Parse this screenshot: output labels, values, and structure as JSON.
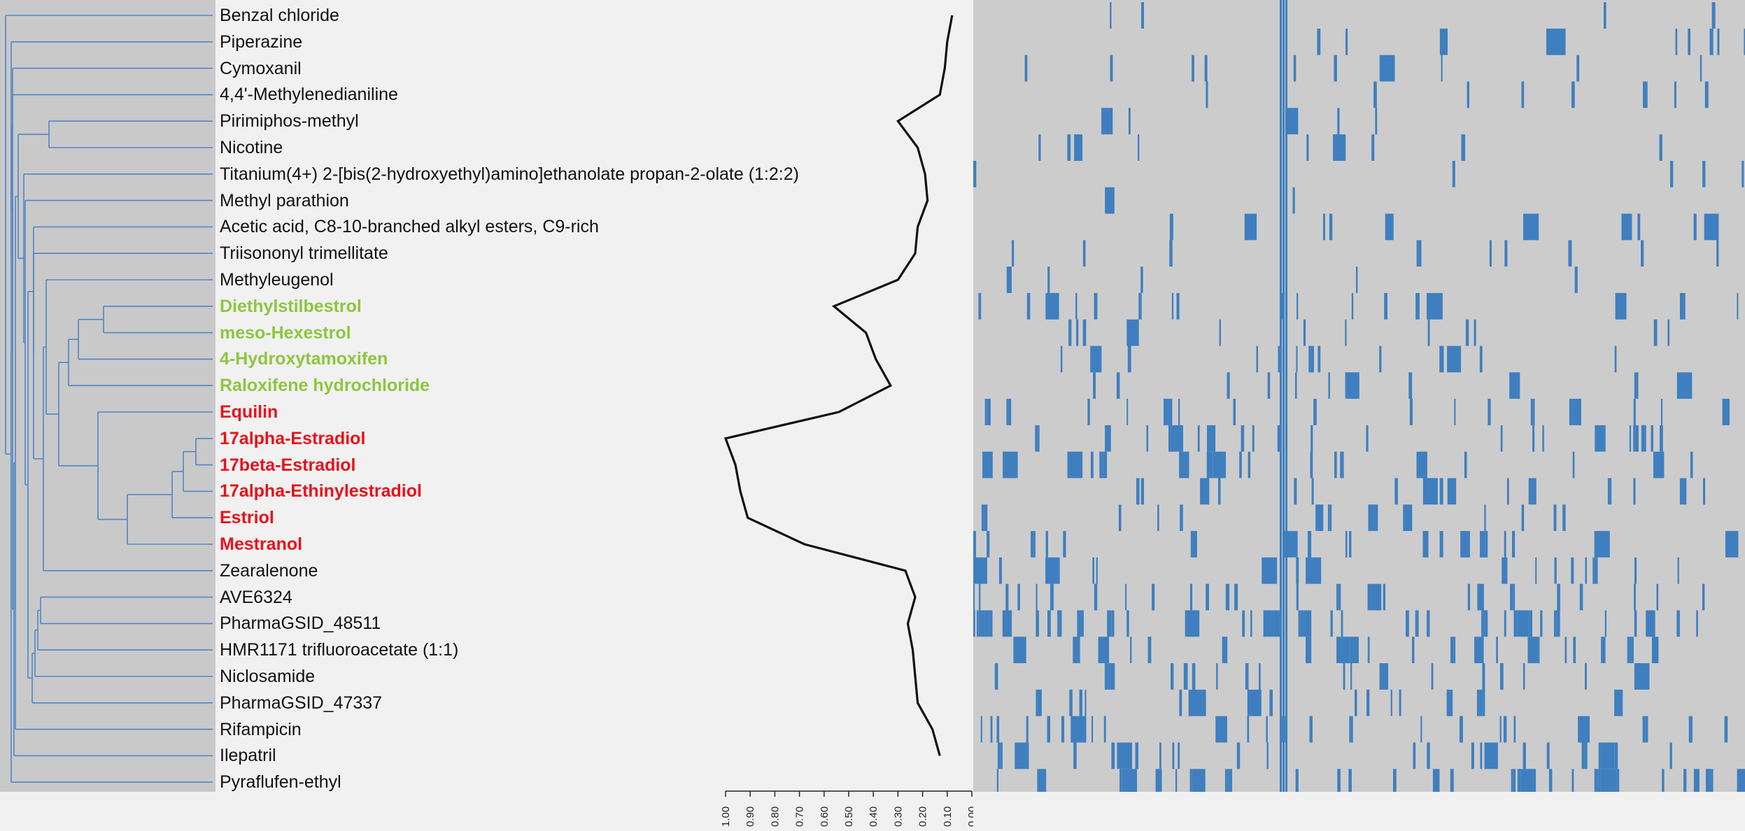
{
  "chart_data": {
    "type": "heatmap",
    "title": "",
    "compounds": [
      {
        "name": "Benzal chloride",
        "group": "none",
        "score": 0.08
      },
      {
        "name": "Piperazine",
        "group": "none",
        "score": 0.1
      },
      {
        "name": "Cymoxanil",
        "group": "none",
        "score": 0.11
      },
      {
        "name": "4,4'-Methylenedianiline",
        "group": "none",
        "score": 0.13
      },
      {
        "name": "Pirimiphos-methyl",
        "group": "none",
        "score": 0.3
      },
      {
        "name": "Nicotine",
        "group": "none",
        "score": 0.22
      },
      {
        "name": "Titanium(4+) 2-[bis(2-hydroxyethyl)amino]ethanolate propan-2-olate (1:2:2)",
        "group": "none",
        "score": 0.19
      },
      {
        "name": "Methyl parathion",
        "group": "none",
        "score": 0.18
      },
      {
        "name": "Acetic acid, C8-10-branched alkyl esters, C9-rich",
        "group": "none",
        "score": 0.22
      },
      {
        "name": "Triisononyl trimellitate",
        "group": "none",
        "score": 0.23
      },
      {
        "name": "Methyleugenol",
        "group": "none",
        "score": 0.3
      },
      {
        "name": "Diethylstilbestrol",
        "group": "green",
        "score": 0.56
      },
      {
        "name": "meso-Hexestrol",
        "group": "green",
        "score": 0.43
      },
      {
        "name": "4-Hydroxytamoxifen",
        "group": "green",
        "score": 0.39
      },
      {
        "name": "Raloxifene hydrochloride",
        "group": "green",
        "score": 0.33
      },
      {
        "name": "Equilin",
        "group": "red",
        "score": 0.54
      },
      {
        "name": "17alpha-Estradiol",
        "group": "red",
        "score": 1.0
      },
      {
        "name": "17beta-Estradiol",
        "group": "red",
        "score": 0.96
      },
      {
        "name": "17alpha-Ethinylestradiol",
        "group": "red",
        "score": 0.94
      },
      {
        "name": "Estriol",
        "group": "red",
        "score": 0.91
      },
      {
        "name": "Mestranol",
        "group": "red",
        "score": 0.68
      },
      {
        "name": "Zearalenone",
        "group": "none",
        "score": 0.27
      },
      {
        "name": "AVE6324",
        "group": "none",
        "score": 0.23
      },
      {
        "name": "PharmaGSID_48511",
        "group": "none",
        "score": 0.26
      },
      {
        "name": "HMR1171 trifluoroacetate (1:1)",
        "group": "none",
        "score": 0.24
      },
      {
        "name": "Niclosamide",
        "group": "none",
        "score": 0.23
      },
      {
        "name": "PharmaGSID_47337",
        "group": "none",
        "score": 0.22
      },
      {
        "name": "Rifampicin",
        "group": "none",
        "score": 0.16
      },
      {
        "name": "Ilepatril",
        "group": "none",
        "score": 0.13
      }
    ],
    "extra_row": "Pyraflufen-ethyl",
    "x_axis": {
      "ticks": [
        "1.00",
        "0.90",
        "0.80",
        "0.70",
        "0.60",
        "0.50",
        "0.40",
        "0.30",
        "0.20",
        "0.10",
        "0.00"
      ],
      "range": [
        1.0,
        0.0
      ]
    },
    "colors": {
      "dendro_line": "#4f86c6",
      "curve": "#111111",
      "heat_on": "#3f7fbf",
      "heat_off": "#cccccc",
      "green": "#8dc63f",
      "red": "#e8111a"
    }
  }
}
